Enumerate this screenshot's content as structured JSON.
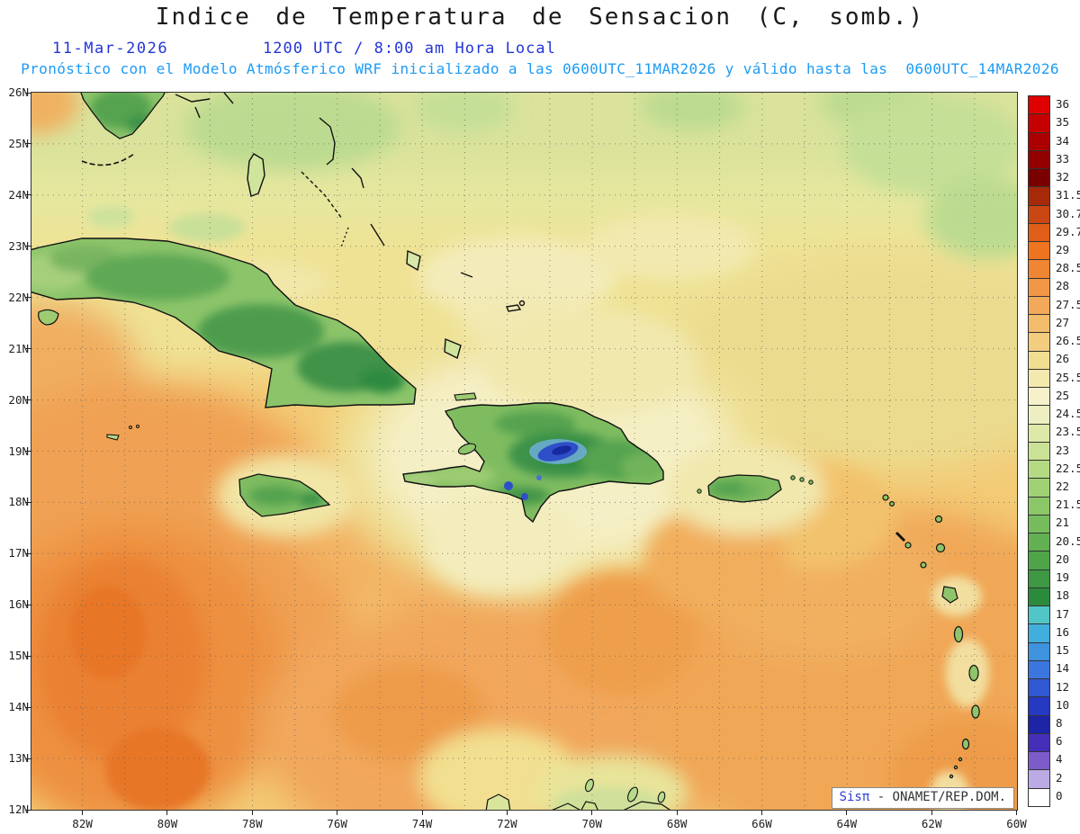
{
  "title": "Indice de Temperatura de Sensacion (C, somb.)",
  "header": {
    "date": "11-Mar-2026",
    "time": "1200 UTC / 8:00 am Hora Local"
  },
  "subtitle": "Pronóstico con el Modelo Atmósferico WRF inicializado a las 0600UTC_11MAR2026 y válido hasta las  0600UTC_14MAR2026",
  "attribution": {
    "brand": "Sisπ",
    "text": "- ONAMET/REP.DOM."
  },
  "axes": {
    "lat_ticks": [
      "26N",
      "25N",
      "24N",
      "23N",
      "22N",
      "21N",
      "20N",
      "19N",
      "18N",
      "17N",
      "16N",
      "15N",
      "14N",
      "13N",
      "12N"
    ],
    "lon_ticks": [
      "82W",
      "80W",
      "78W",
      "76W",
      "74W",
      "72W",
      "70W",
      "68W",
      "66W",
      "64W",
      "62W",
      "60W"
    ]
  },
  "colorbar": {
    "values": [
      "36",
      "35",
      "34",
      "33",
      "32",
      "31.5",
      "30.7",
      "29.7",
      "29",
      "28.5",
      "28",
      "27.5",
      "27",
      "26.5",
      "26",
      "25.5",
      "25",
      "24.5",
      "23.5",
      "23",
      "22.5",
      "22",
      "21.5",
      "21",
      "20.5",
      "20",
      "19",
      "18",
      "17",
      "16",
      "15",
      "14",
      "12",
      "10",
      "8",
      "6",
      "4",
      "2",
      "0"
    ],
    "colors": [
      "#E00000",
      "#C60000",
      "#AC0000",
      "#930000",
      "#7A0000",
      "#A62A0A",
      "#C94712",
      "#E05E18",
      "#EE7420",
      "#F08534",
      "#F29747",
      "#F3A95A",
      "#F3BB6C",
      "#F2CD80",
      "#F1DE93",
      "#F3E9AE",
      "#F6F1CB",
      "#EDEFC2",
      "#DCE9A9",
      "#C9E295",
      "#B5DA84",
      "#A0D175",
      "#8BC768",
      "#76BC5C",
      "#62B052",
      "#4FA44A",
      "#3D9743",
      "#2C8A3D",
      "#52C6C6",
      "#41AEDC",
      "#3E92DE",
      "#3B76DE",
      "#2F58D2",
      "#2539C2",
      "#1D24A6",
      "#462FB8",
      "#7D5BCB",
      "#BCAAE4",
      "#FFFFFF"
    ]
  }
}
